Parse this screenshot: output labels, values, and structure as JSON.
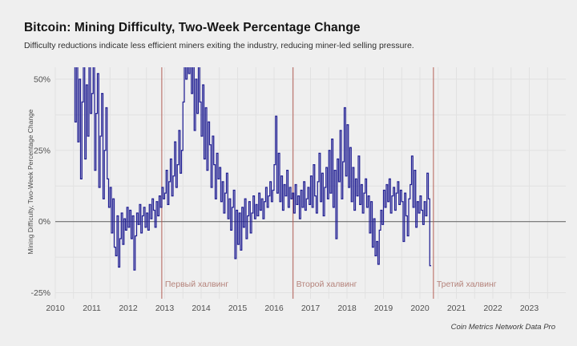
{
  "page": {
    "background": "#efefef"
  },
  "header": {
    "title": "Bitcoin: Mining Difficulty, Two-Week Percentage Change",
    "subtitle": "Difficulty reductions indicate less efficient miners exiting the industry, reducing miner-led selling pressure."
  },
  "footer": {
    "attribution": "Coin Metrics Network Data Pro"
  },
  "chart_data": {
    "type": "line",
    "interpolation": "step",
    "title": "Bitcoin: Mining Difficulty, Two-Week Percentage Change",
    "xlabel": "",
    "ylabel": "Mining Difficulty, Two-Week Percentage Change",
    "xlim": [
      2010,
      2024
    ],
    "ylim": [
      -27.1,
      54.2
    ],
    "x_ticks": [
      2010,
      2011,
      2012,
      2013,
      2014,
      2015,
      2016,
      2017,
      2018,
      2019,
      2020,
      2021,
      2022,
      2023
    ],
    "y_ticks": [
      {
        "value": 50,
        "label": "50%"
      },
      {
        "value": 25,
        "label": "25%"
      },
      {
        "value": 0,
        "label": "0%"
      },
      {
        "value": -25,
        "label": "-25%"
      }
    ],
    "grid": {
      "vertical_step_years": 0.5,
      "horizontal_step_pct": 12.5,
      "color": "#e1e1e1"
    },
    "zero_line_color": "#6f6f6f",
    "line_color": "#201f93",
    "halving_line_color": "#b25b52",
    "halving_label_color": "#b5837b",
    "halvings": [
      {
        "label": "Первый халвинг",
        "year": 2012.92
      },
      {
        "label": "Второй халвинг",
        "year": 2016.52
      },
      {
        "label": "Третий халвинг",
        "year": 2020.37
      }
    ],
    "series": [
      {
        "name": "Mining Difficulty, Two-Week Percentage Change",
        "start_year": 2010.5,
        "points_per_year": 26,
        "unit": "%",
        "values": [
          55,
          35,
          58,
          28,
          50,
          15,
          42,
          58,
          22,
          48,
          30,
          55,
          38,
          45,
          58,
          18,
          38,
          52,
          12,
          30,
          45,
          8,
          25,
          40,
          15,
          5,
          12,
          -4,
          8,
          -9,
          -12,
          2,
          -16,
          -6,
          3,
          -8,
          1,
          -3,
          5,
          -2,
          4,
          -6,
          2,
          -17,
          -5,
          3,
          -1,
          6,
          -4,
          2,
          5,
          -2,
          3,
          -3,
          6,
          1,
          8,
          4,
          -2,
          7,
          2,
          9,
          5,
          12,
          8,
          10,
          18,
          6,
          14,
          22,
          9,
          16,
          28,
          12,
          20,
          32,
          17,
          25,
          42,
          55,
          50,
          58,
          52,
          60,
          45,
          55,
          32,
          50,
          38,
          55,
          42,
          30,
          48,
          22,
          40,
          18,
          35,
          27,
          12,
          30,
          20,
          8,
          24,
          15,
          19,
          7,
          14,
          3,
          10,
          17,
          1,
          8,
          -3,
          5,
          11,
          -13,
          4,
          -8,
          3,
          -10,
          5,
          -2,
          8,
          -6,
          2,
          7,
          -4,
          3,
          9,
          1,
          6,
          2,
          10,
          4,
          8,
          1,
          7,
          12,
          5,
          9,
          14,
          7,
          11,
          20,
          37,
          10,
          24,
          7,
          16,
          4,
          13,
          9,
          18,
          5,
          12,
          8,
          10,
          3,
          13,
          6,
          9,
          1,
          11,
          5,
          14,
          4,
          8,
          12,
          6,
          16,
          5,
          20,
          9,
          3,
          14,
          24,
          7,
          17,
          2,
          12,
          19,
          8,
          25,
          10,
          29,
          5,
          18,
          -6,
          22,
          14,
          32,
          8,
          21,
          40,
          16,
          34,
          12,
          26,
          7,
          19,
          4,
          15,
          9,
          23,
          6,
          13,
          3,
          10,
          15,
          5,
          9,
          -4,
          7,
          -9,
          1,
          -12,
          -7,
          -15,
          -3,
          4,
          -1,
          11,
          5,
          13,
          7,
          15,
          3,
          9,
          12,
          4,
          10,
          14,
          6,
          11,
          7,
          -7,
          10,
          2,
          -5,
          8,
          13,
          23,
          5,
          18,
          -2,
          7,
          3,
          9,
          4,
          -1,
          7,
          2,
          17,
          8,
          -15.5
        ]
      }
    ],
    "legend": {
      "visible": false
    }
  }
}
